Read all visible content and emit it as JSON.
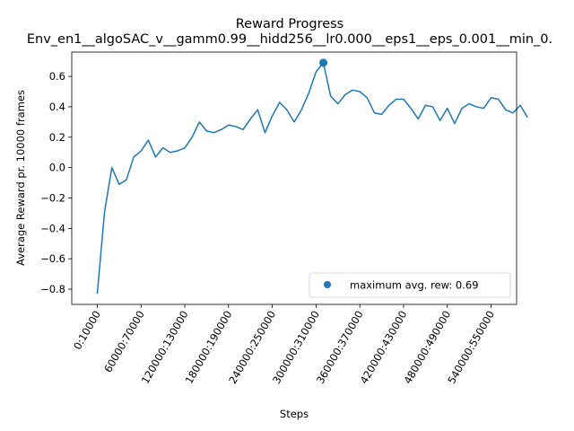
{
  "chart_data": {
    "type": "line",
    "title": "Reward Progress",
    "subtitle": "Env_en1__algoSAC_v__gamm0.99__hidd256__lr0.000__eps1__eps_0.001__min_0.",
    "xlabel": "Steps",
    "ylabel": "Average Reward pr. 10000 frames",
    "ylim": [
      -0.9,
      0.76
    ],
    "xlim": [
      -3.5,
      57.5
    ],
    "grid": false,
    "legend_position": "bottom-right",
    "series_color": "#1f77b4",
    "yticks": [
      -0.8,
      -0.6,
      -0.4,
      -0.2,
      0.0,
      0.2,
      0.4,
      0.6
    ],
    "ytick_labels": [
      "−0.8",
      "−0.6",
      "−0.4",
      "−0.2",
      "0.0",
      "0.2",
      "0.4",
      "0.6"
    ],
    "xticks": [
      0,
      6,
      12,
      18,
      24,
      30,
      36,
      42,
      48,
      54
    ],
    "xtick_labels": [
      "0:10000",
      "60000:70000",
      "120000:130000",
      "180000:190000",
      "240000:250000",
      "300000:310000",
      "360000:370000",
      "420000:430000",
      "480000:490000",
      "540000:550000"
    ],
    "series": [
      {
        "values": [
          -0.83,
          -0.29,
          0.0,
          -0.11,
          -0.08,
          0.07,
          0.11,
          0.18,
          0.07,
          0.13,
          0.1,
          0.11,
          0.13,
          0.2,
          0.3,
          0.24,
          0.23,
          0.25,
          0.28,
          0.27,
          0.25,
          0.32,
          0.38,
          0.23,
          0.34,
          0.43,
          0.38,
          0.3,
          0.38,
          0.49,
          0.63,
          0.69,
          0.47,
          0.42,
          0.48,
          0.51,
          0.5,
          0.46,
          0.36,
          0.35,
          0.41,
          0.45,
          0.45,
          0.39,
          0.32,
          0.41,
          0.4,
          0.31,
          0.39,
          0.29,
          0.39,
          0.42,
          0.4,
          0.39,
          0.46,
          0.45,
          0.38,
          0.36,
          0.41,
          0.33
        ]
      }
    ],
    "max_point": {
      "x": 31,
      "y": 0.69
    },
    "legend": {
      "label": "maximum avg. rew: 0.69"
    }
  }
}
